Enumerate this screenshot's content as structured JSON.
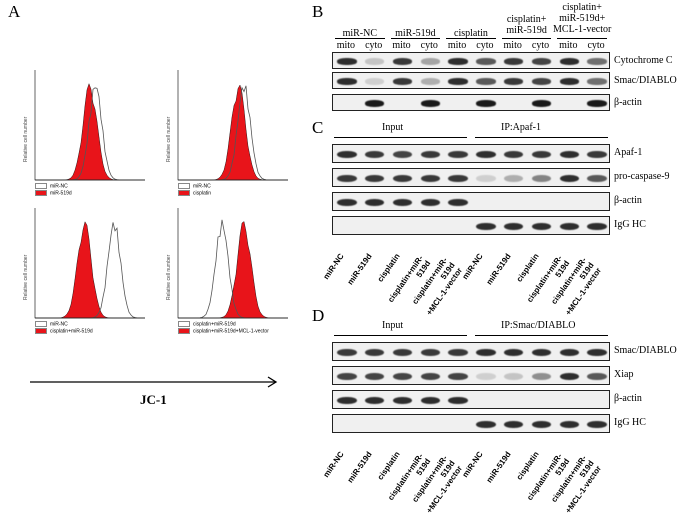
{
  "panels": {
    "A": "A",
    "B": "B",
    "C": "C",
    "D": "D"
  },
  "panel_a": {
    "y_label": "Relative cell number",
    "x_label": "JC-1",
    "plots": [
      {
        "legend_open": "miR-NC",
        "legend_filled": "miR-519d"
      },
      {
        "legend_open": "miR-NC",
        "legend_filled": "cisplatin"
      },
      {
        "legend_open": "miR-NC",
        "legend_filled": "cisplatin+miR-519d"
      },
      {
        "legend_open": "cisplatin+miR-519d",
        "legend_filled": "cisplatin+miR-519d+MCL-1-vector"
      }
    ]
  },
  "panel_b": {
    "groups": [
      "miR-NC",
      "miR-519d",
      "cisplatin",
      "cisplatin+\nmiR-519d",
      "cisplatin+\nmiR-519d+\nMCL-1-vector"
    ],
    "sub": [
      "mito",
      "cyto",
      "mito",
      "cyto",
      "mito",
      "cyto",
      "mito",
      "cyto",
      "mito",
      "cyto"
    ],
    "rows": [
      "Cytochrome C",
      "Smac/DIABLO",
      "β-actin"
    ]
  },
  "panel_c": {
    "input": "Input",
    "ip": "IP:Apaf-1",
    "rows": [
      "Apaf-1",
      "pro-caspase-9",
      "β-actin",
      "IgG HC"
    ],
    "lanes": [
      "miR-NC",
      "miR-519d",
      "cisplatin",
      "cisplatin+miR-519d",
      "cisplatin+miR-519d\n+MCL-1-vector",
      "miR-NC",
      "miR-519d",
      "cisplatin",
      "cisplatin+miR-519d",
      "cisplatin+miR-519d\n+MCL-1-vector"
    ]
  },
  "panel_d": {
    "input": "Input",
    "ip": "IP:Smac/DIABLO",
    "rows": [
      "Smac/DIABLO",
      "Xiap",
      "β-actin",
      "IgG HC"
    ],
    "lanes": [
      "miR-NC",
      "miR-519d",
      "cisplatin",
      "cisplatin+miR-519d",
      "cisplatin+miR-519d\n+MCL-1-vector",
      "miR-NC",
      "miR-519d",
      "cisplatin",
      "cisplatin+miR-519d",
      "cisplatin+miR-519d\n+MCL-1-vector"
    ]
  },
  "colors": {
    "filled": "#e8141a",
    "open": "#ffffff",
    "band": "#1a1a1a"
  }
}
